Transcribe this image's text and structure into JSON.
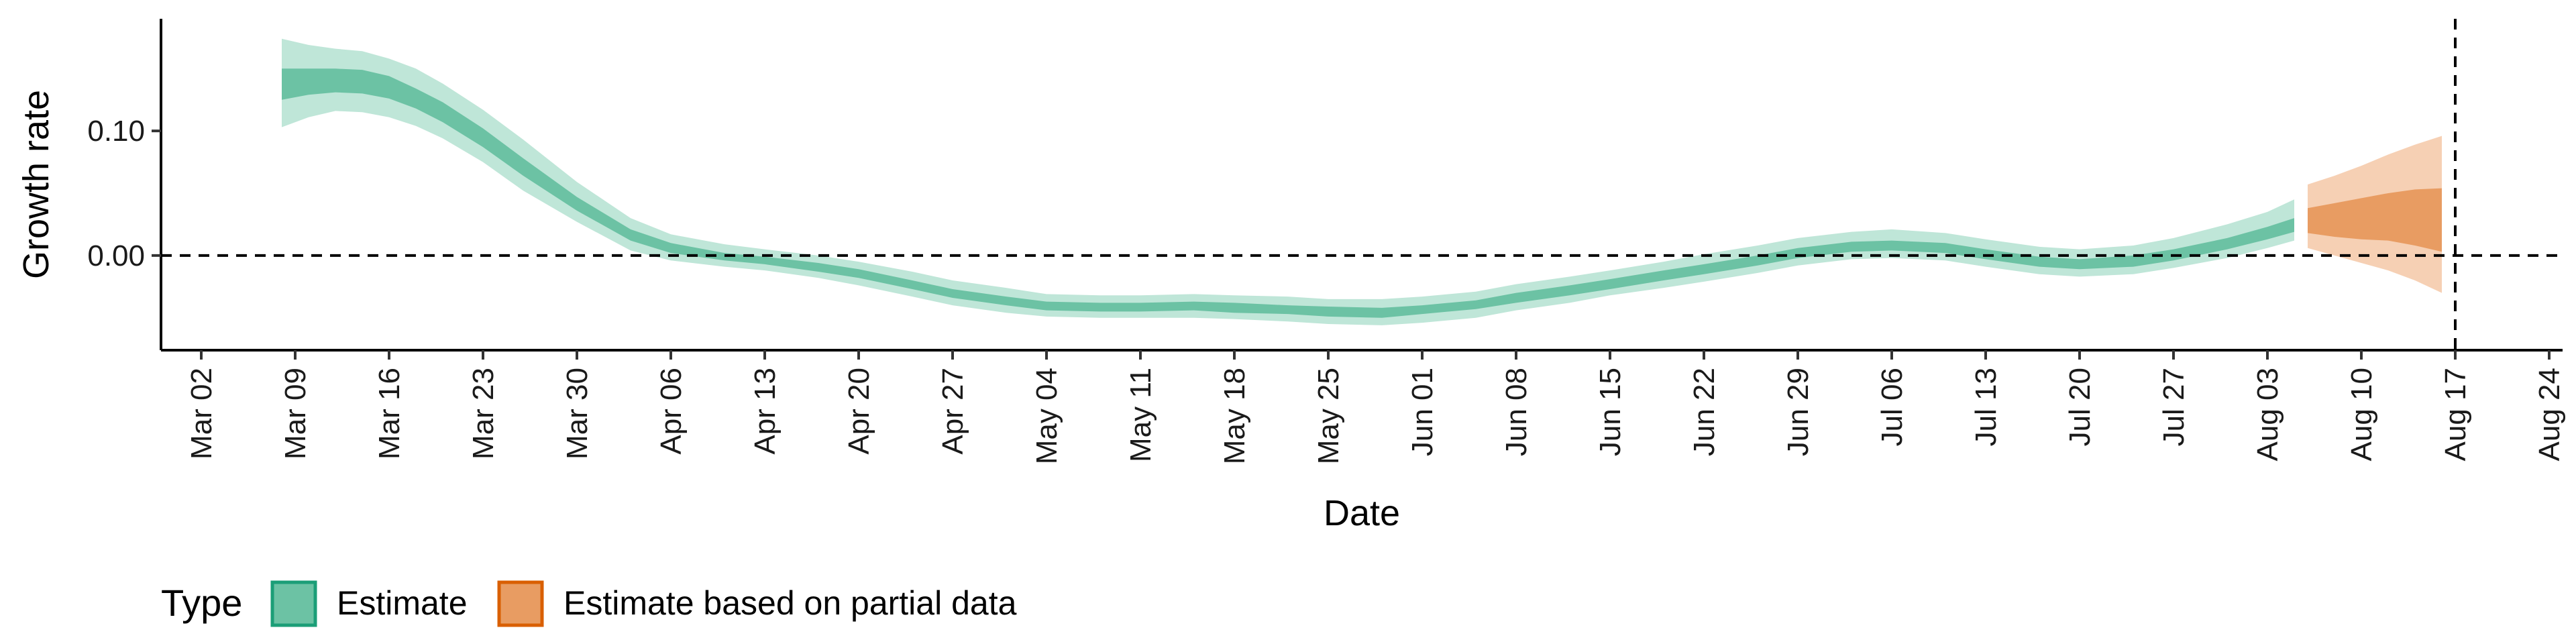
{
  "chart_data": {
    "type": "area",
    "xlabel": "Date",
    "ylabel": "Growth rate",
    "x_ticks": [
      "Mar 02",
      "Mar 09",
      "Mar 16",
      "Mar 23",
      "Mar 30",
      "Apr 06",
      "Apr 13",
      "Apr 20",
      "Apr 27",
      "May 04",
      "May 11",
      "May 18",
      "May 25",
      "Jun 01",
      "Jun 08",
      "Jun 15",
      "Jun 22",
      "Jun 29",
      "Jul 06",
      "Jul 13",
      "Jul 20",
      "Jul 27",
      "Aug 03",
      "Aug 10",
      "Aug 17",
      "Aug 24"
    ],
    "y_ticks": [
      "0.00",
      "0.10"
    ],
    "xlim": [
      "2020-02-28",
      "2020-08-25"
    ],
    "ylim": [
      -0.076,
      0.19
    ],
    "reference_lines": {
      "y": 0.0,
      "x": "2020-08-17"
    },
    "legend": {
      "title": "Type",
      "position": "bottom-left",
      "entries": [
        "Estimate",
        "Estimate based on partial data"
      ]
    },
    "colors": {
      "estimate_outer": "#bfe6d8",
      "estimate_inner": "#6cc2a4",
      "estimate_border": "#1b9e77",
      "partial_outer": "#f6d0b4",
      "partial_inner": "#e89c62",
      "partial_border": "#d95f02"
    },
    "series": [
      {
        "name": "Estimate",
        "band_columns": [
          "date",
          "lower_90",
          "lower_50",
          "upper_50",
          "upper_90"
        ],
        "points": [
          [
            "2020-03-08",
            0.103,
            0.125,
            0.15,
            0.174
          ],
          [
            "2020-03-10",
            0.111,
            0.129,
            0.15,
            0.169
          ],
          [
            "2020-03-12",
            0.116,
            0.131,
            0.15,
            0.166
          ],
          [
            "2020-03-14",
            0.115,
            0.13,
            0.149,
            0.164
          ],
          [
            "2020-03-16",
            0.111,
            0.126,
            0.144,
            0.158
          ],
          [
            "2020-03-18",
            0.104,
            0.118,
            0.134,
            0.15
          ],
          [
            "2020-03-20",
            0.094,
            0.107,
            0.123,
            0.138
          ],
          [
            "2020-03-23",
            0.075,
            0.087,
            0.102,
            0.117
          ],
          [
            "2020-03-26",
            0.052,
            0.064,
            0.078,
            0.093
          ],
          [
            "2020-03-30",
            0.027,
            0.036,
            0.047,
            0.059
          ],
          [
            "2020-04-03",
            0.004,
            0.012,
            0.021,
            0.03
          ],
          [
            "2020-04-06",
            -0.004,
            0.002,
            0.01,
            0.017
          ],
          [
            "2020-04-10",
            -0.009,
            -0.004,
            0.002,
            0.009
          ],
          [
            "2020-04-13",
            -0.012,
            -0.007,
            -0.001,
            0.005
          ],
          [
            "2020-04-17",
            -0.018,
            -0.013,
            -0.006,
            0.0
          ],
          [
            "2020-04-20",
            -0.024,
            -0.018,
            -0.011,
            -0.005
          ],
          [
            "2020-04-24",
            -0.033,
            -0.027,
            -0.02,
            -0.013
          ],
          [
            "2020-04-27",
            -0.04,
            -0.034,
            -0.027,
            -0.02
          ],
          [
            "2020-05-01",
            -0.046,
            -0.04,
            -0.033,
            -0.026
          ],
          [
            "2020-05-04",
            -0.049,
            -0.044,
            -0.037,
            -0.031
          ],
          [
            "2020-05-08",
            -0.05,
            -0.045,
            -0.038,
            -0.032
          ],
          [
            "2020-05-11",
            -0.05,
            -0.045,
            -0.038,
            -0.032
          ],
          [
            "2020-05-15",
            -0.05,
            -0.044,
            -0.037,
            -0.031
          ],
          [
            "2020-05-18",
            -0.051,
            -0.046,
            -0.038,
            -0.032
          ],
          [
            "2020-05-22",
            -0.053,
            -0.047,
            -0.04,
            -0.033
          ],
          [
            "2020-05-25",
            -0.055,
            -0.049,
            -0.041,
            -0.035
          ],
          [
            "2020-05-29",
            -0.056,
            -0.05,
            -0.042,
            -0.035
          ],
          [
            "2020-06-01",
            -0.054,
            -0.047,
            -0.04,
            -0.033
          ],
          [
            "2020-06-05",
            -0.05,
            -0.043,
            -0.036,
            -0.029
          ],
          [
            "2020-06-08",
            -0.044,
            -0.038,
            -0.03,
            -0.023
          ],
          [
            "2020-06-12",
            -0.038,
            -0.032,
            -0.024,
            -0.017
          ],
          [
            "2020-06-15",
            -0.032,
            -0.027,
            -0.019,
            -0.012
          ],
          [
            "2020-06-19",
            -0.026,
            -0.02,
            -0.012,
            -0.005
          ],
          [
            "2020-06-22",
            -0.021,
            -0.015,
            -0.007,
            0.001
          ],
          [
            "2020-06-26",
            -0.014,
            -0.008,
            0.0,
            0.008
          ],
          [
            "2020-06-29",
            -0.008,
            -0.002,
            0.006,
            0.014
          ],
          [
            "2020-07-03",
            -0.003,
            0.003,
            0.011,
            0.019
          ],
          [
            "2020-07-06",
            -0.002,
            0.004,
            0.012,
            0.021
          ],
          [
            "2020-07-10",
            -0.004,
            0.002,
            0.01,
            0.018
          ],
          [
            "2020-07-13",
            -0.009,
            -0.003,
            0.005,
            0.013
          ],
          [
            "2020-07-17",
            -0.015,
            -0.009,
            -0.001,
            0.007
          ],
          [
            "2020-07-20",
            -0.017,
            -0.011,
            -0.003,
            0.005
          ],
          [
            "2020-07-24",
            -0.015,
            -0.009,
            0.0,
            0.008
          ],
          [
            "2020-07-27",
            -0.01,
            -0.004,
            0.005,
            0.014
          ],
          [
            "2020-07-31",
            -0.002,
            0.005,
            0.014,
            0.025
          ],
          [
            "2020-08-03",
            0.006,
            0.013,
            0.023,
            0.035
          ],
          [
            "2020-08-05",
            0.012,
            0.019,
            0.03,
            0.045
          ]
        ]
      },
      {
        "name": "Estimate based on partial data",
        "band_columns": [
          "date",
          "lower_90",
          "lower_50",
          "upper_50",
          "upper_90"
        ],
        "points": [
          [
            "2020-08-06",
            0.006,
            0.018,
            0.038,
            0.057
          ],
          [
            "2020-08-08",
            0.0,
            0.015,
            0.042,
            0.064
          ],
          [
            "2020-08-10",
            -0.006,
            0.013,
            0.046,
            0.072
          ],
          [
            "2020-08-12",
            -0.012,
            0.012,
            0.05,
            0.081
          ],
          [
            "2020-08-14",
            -0.02,
            0.008,
            0.053,
            0.089
          ],
          [
            "2020-08-16",
            -0.03,
            0.003,
            0.054,
            0.096
          ]
        ]
      }
    ]
  }
}
